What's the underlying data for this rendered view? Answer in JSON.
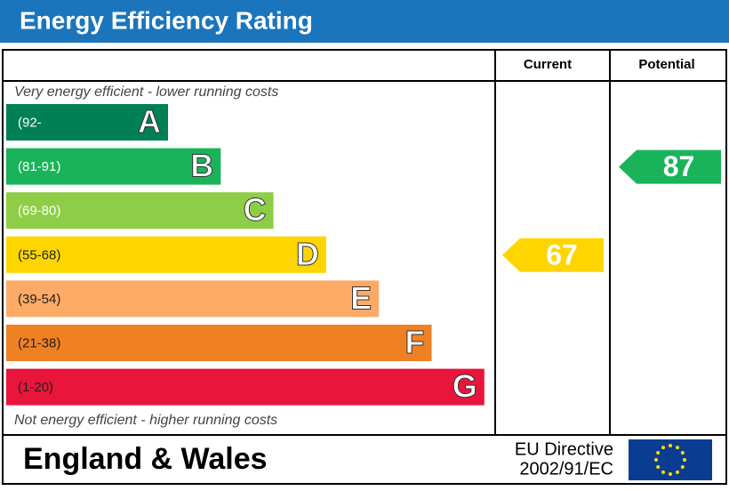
{
  "chart_data": {
    "type": "epc",
    "title": "Energy Efficiency Rating",
    "columns": [
      "Current",
      "Potential"
    ],
    "top_note": "Very energy efficient - lower running costs",
    "bottom_note": "Not energy efficient - higher running costs",
    "bands": [
      {
        "range": "(92-",
        "letter": "A",
        "color": "#008054"
      },
      {
        "range": "(81-91)",
        "letter": "B",
        "color": "#19b459"
      },
      {
        "range": "(69-80)",
        "letter": "C",
        "color": "#8dce46"
      },
      {
        "range": "(55-68)",
        "letter": "D",
        "color": "#ffd500"
      },
      {
        "range": "(39-54)",
        "letter": "E",
        "color": "#fcaa65"
      },
      {
        "range": "(21-38)",
        "letter": "F",
        "color": "#ef8023"
      },
      {
        "range": "(1-20)",
        "letter": "G",
        "color": "#e9153b"
      }
    ],
    "current": 67,
    "potential": 87,
    "region": "England & Wales",
    "directive": [
      "EU Directive",
      "2002/91/EC"
    ]
  }
}
